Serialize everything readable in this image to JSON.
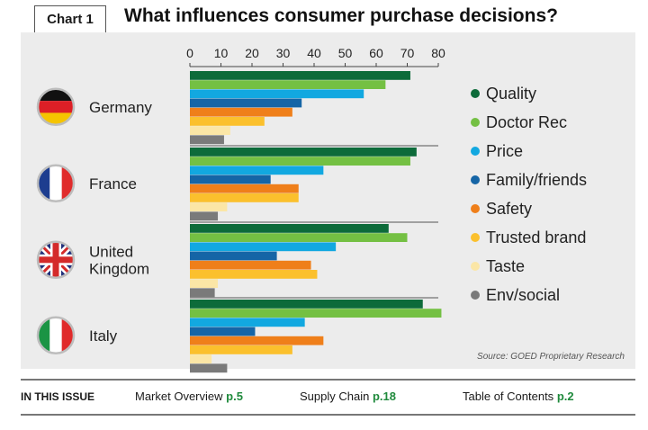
{
  "header": {
    "chart_label": "Chart 1",
    "title": "What influences consumer purchase decisions?"
  },
  "source": "Source: GOED Proprietary Research",
  "footer": {
    "issue_label": "IN THIS ISSUE",
    "links": [
      {
        "text": "Market Overview",
        "page": "p.5"
      },
      {
        "text": "Supply Chain",
        "page": "p.18"
      },
      {
        "text": "Table of Contents",
        "page": "p.2"
      }
    ]
  },
  "chart_data": {
    "type": "bar",
    "orientation": "horizontal",
    "title": "What influences consumer purchase decisions?",
    "xlim": [
      0,
      80
    ],
    "xticks": [
      0,
      10,
      20,
      30,
      40,
      50,
      60,
      70,
      80
    ],
    "categories": [
      {
        "label": [
          "Germany"
        ],
        "flag": "germany"
      },
      {
        "label": [
          "France"
        ],
        "flag": "france"
      },
      {
        "label": [
          "United",
          "Kingdom"
        ],
        "flag": "uk"
      },
      {
        "label": [
          "Italy"
        ],
        "flag": "italy"
      }
    ],
    "series": [
      {
        "name": "Quality",
        "color": "#0d6b3a",
        "values": [
          71,
          73,
          64,
          75
        ]
      },
      {
        "name": "Doctor Rec",
        "color": "#74c043",
        "values": [
          63,
          71,
          70,
          81
        ]
      },
      {
        "name": "Price",
        "color": "#12a8e0",
        "values": [
          56,
          43,
          47,
          37
        ]
      },
      {
        "name": "Family/friends",
        "color": "#1565a6",
        "values": [
          36,
          26,
          28,
          21
        ]
      },
      {
        "name": "Safety",
        "color": "#ef7f1a",
        "values": [
          33,
          35,
          39,
          43
        ]
      },
      {
        "name": "Trusted brand",
        "color": "#fbc02d",
        "values": [
          24,
          35,
          41,
          33
        ]
      },
      {
        "name": "Taste",
        "color": "#fbe6a6",
        "values": [
          13,
          12,
          9,
          7
        ]
      },
      {
        "name": "Env/social",
        "color": "#7a7a7a",
        "values": [
          11,
          9,
          8,
          12
        ]
      }
    ],
    "legend": "right",
    "grid": false
  }
}
